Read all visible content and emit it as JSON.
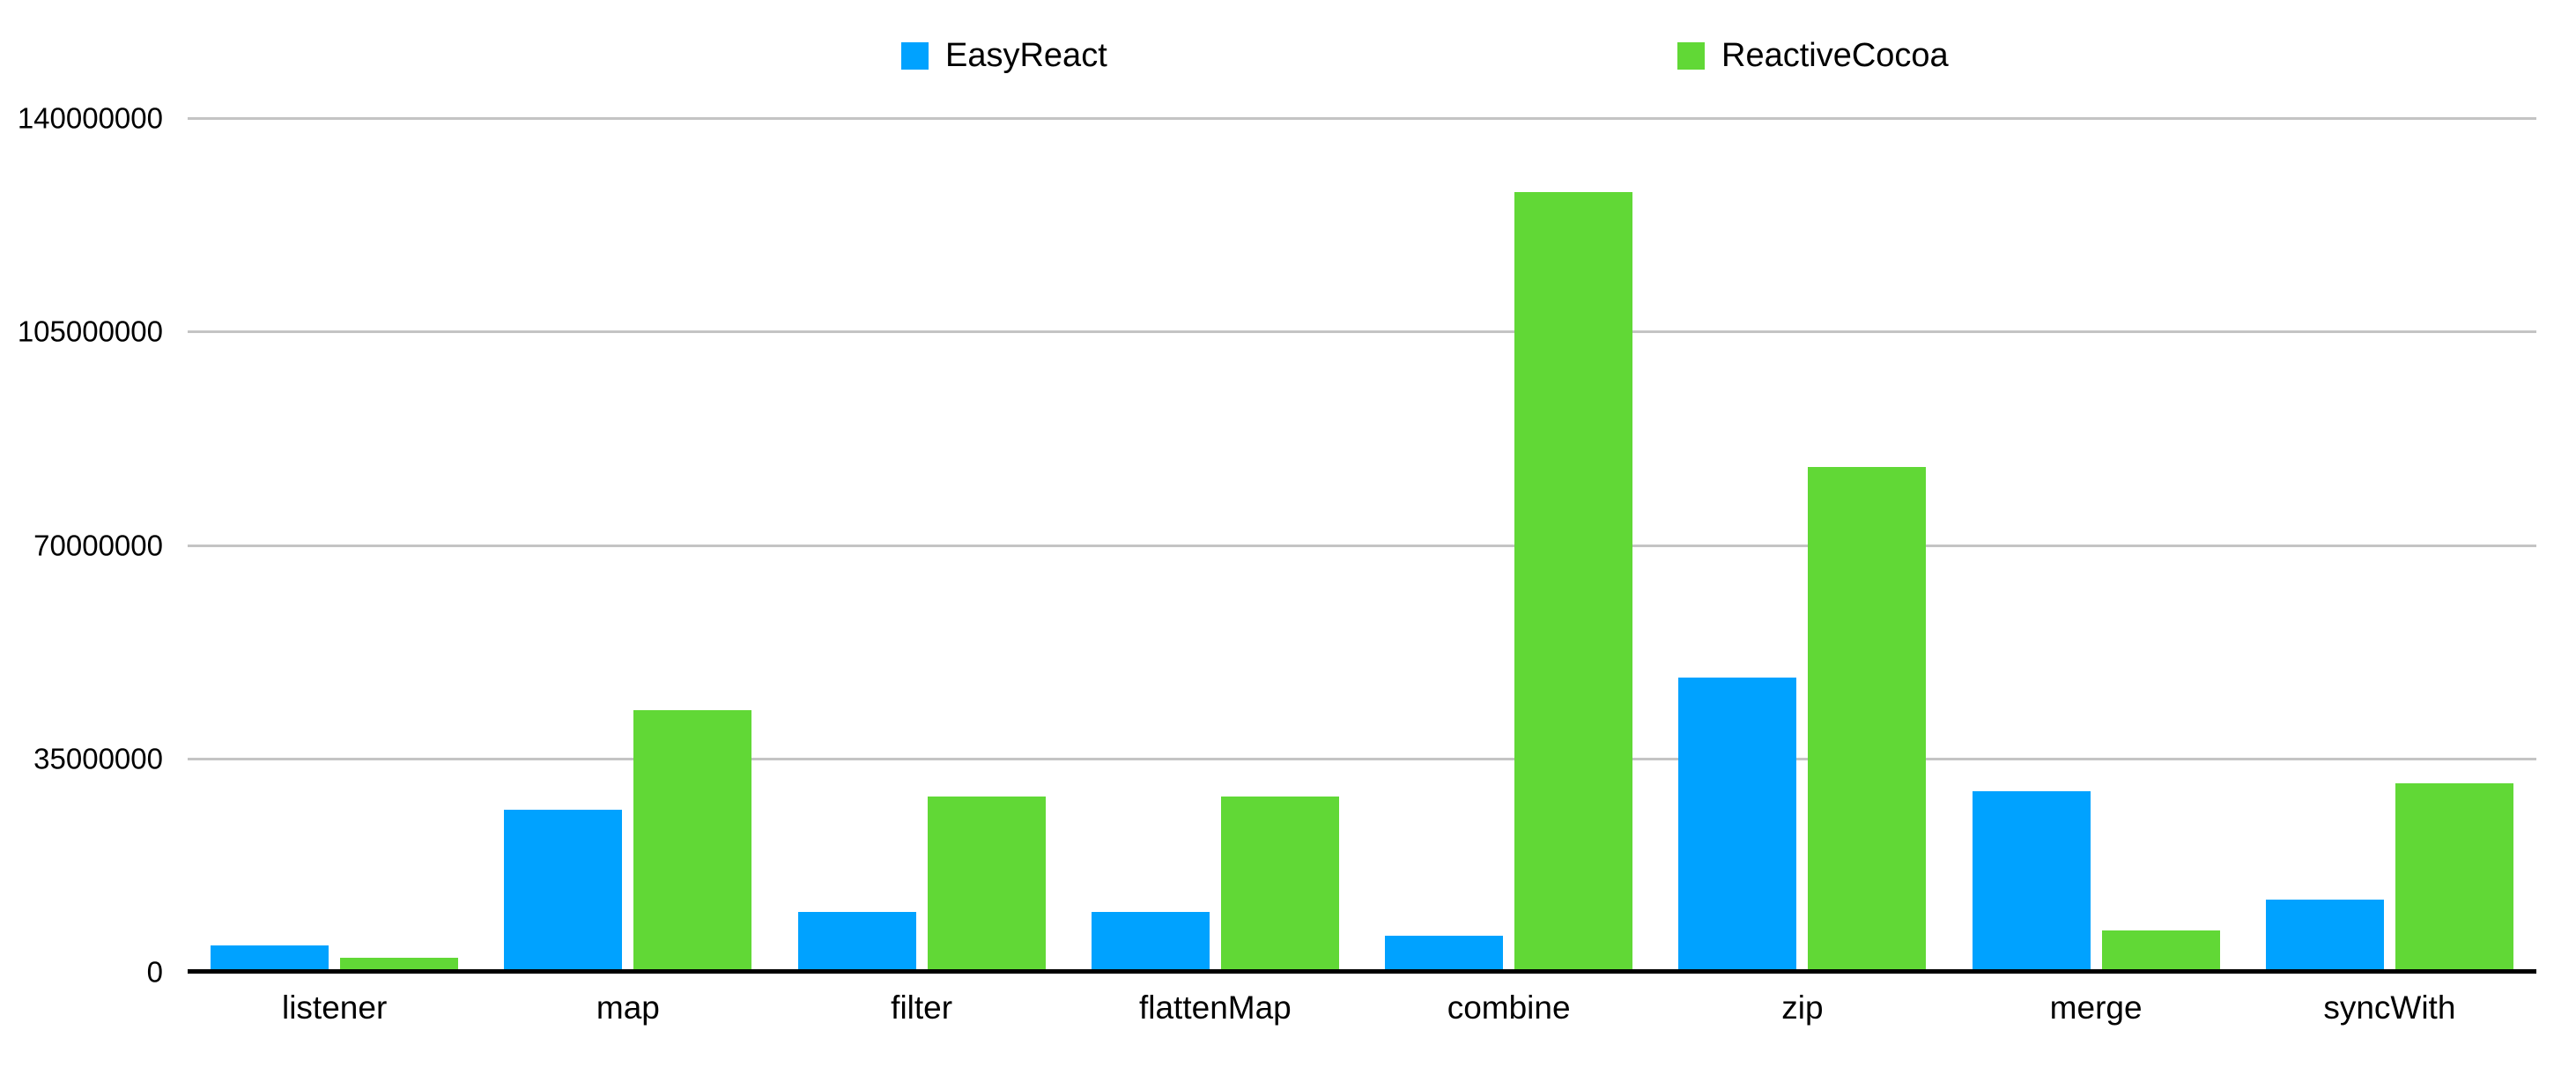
{
  "colors": {
    "easyreact_blue": "#00A2FF",
    "reactivecocoa_green": "#61D836",
    "gridline_gray": "#C4C4C4",
    "axis_black": "#000000",
    "text_black": "#000000",
    "background": "#FFFFFF"
  },
  "legend": {
    "entries": [
      {
        "label": "EasyReact",
        "color": "#00A2FF"
      },
      {
        "label": "ReactiveCocoa",
        "color": "#61D836"
      }
    ]
  },
  "chart_data": {
    "type": "bar",
    "title": "",
    "xlabel": "",
    "ylabel": "",
    "categories": [
      "listener",
      "map",
      "filter",
      "flattenMap",
      "combine",
      "zip",
      "merge",
      "syncWith"
    ],
    "series": [
      {
        "name": "EasyReact",
        "color": "#00A2FF",
        "values": [
          4200000,
          26400000,
          9700000,
          9700000,
          5800000,
          48100000,
          29500000,
          11700000
        ]
      },
      {
        "name": "ReactiveCocoa",
        "color": "#61D836",
        "values": [
          2200000,
          42800000,
          28600000,
          28600000,
          127700000,
          82600000,
          6600000,
          30800000
        ]
      }
    ],
    "ylim": [
      0,
      140000000
    ],
    "yticks": [
      0,
      35000000,
      70000000,
      105000000,
      140000000
    ],
    "grid": true,
    "legend_position": "top"
  }
}
